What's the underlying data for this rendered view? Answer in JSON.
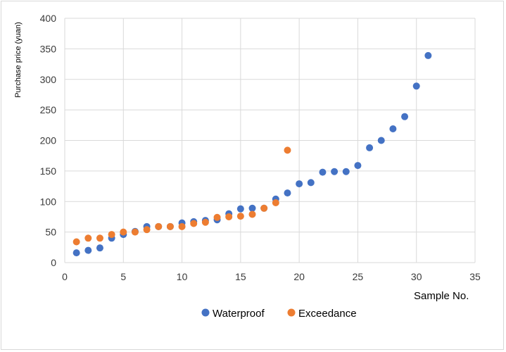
{
  "chart_data": {
    "type": "scatter",
    "xlabel": "Sample No.",
    "ylabel": "Purchase price (yuan)",
    "xlim": [
      0,
      35
    ],
    "ylim": [
      0,
      400
    ],
    "xticks": [
      "0",
      "5",
      "10",
      "15",
      "20",
      "25",
      "30",
      "35"
    ],
    "yticks": [
      "0",
      "50",
      "100",
      "150",
      "200",
      "250",
      "300",
      "350",
      "400"
    ],
    "grid": true,
    "legend_position": "bottom",
    "series": [
      {
        "name": "Waterproof",
        "color": "#4472c4",
        "points": [
          [
            1,
            16
          ],
          [
            2,
            20
          ],
          [
            3,
            24
          ],
          [
            4,
            40
          ],
          [
            5,
            46
          ],
          [
            6,
            51
          ],
          [
            7,
            59
          ],
          [
            8,
            59
          ],
          [
            9,
            59
          ],
          [
            10,
            65
          ],
          [
            11,
            67
          ],
          [
            12,
            69
          ],
          [
            13,
            70
          ],
          [
            14,
            80
          ],
          [
            15,
            88
          ],
          [
            16,
            89
          ],
          [
            17,
            89
          ],
          [
            18,
            104
          ],
          [
            19,
            114
          ],
          [
            20,
            129
          ],
          [
            21,
            131
          ],
          [
            22,
            148
          ],
          [
            23,
            149
          ],
          [
            24,
            149
          ],
          [
            25,
            159
          ],
          [
            26,
            188
          ],
          [
            27,
            200
          ],
          [
            28,
            219
          ],
          [
            29,
            239
          ],
          [
            30,
            289
          ],
          [
            31,
            339
          ]
        ]
      },
      {
        "name": "Exceedance",
        "color": "#ed7d31",
        "points": [
          [
            1,
            34
          ],
          [
            2,
            40
          ],
          [
            3,
            40
          ],
          [
            4,
            46
          ],
          [
            5,
            50
          ],
          [
            6,
            50
          ],
          [
            7,
            54
          ],
          [
            8,
            59
          ],
          [
            9,
            59
          ],
          [
            10,
            59
          ],
          [
            11,
            64
          ],
          [
            12,
            66
          ],
          [
            13,
            74
          ],
          [
            14,
            75
          ],
          [
            15,
            76
          ],
          [
            16,
            79
          ],
          [
            17,
            89
          ],
          [
            18,
            98
          ],
          [
            19,
            184
          ]
        ]
      }
    ]
  }
}
